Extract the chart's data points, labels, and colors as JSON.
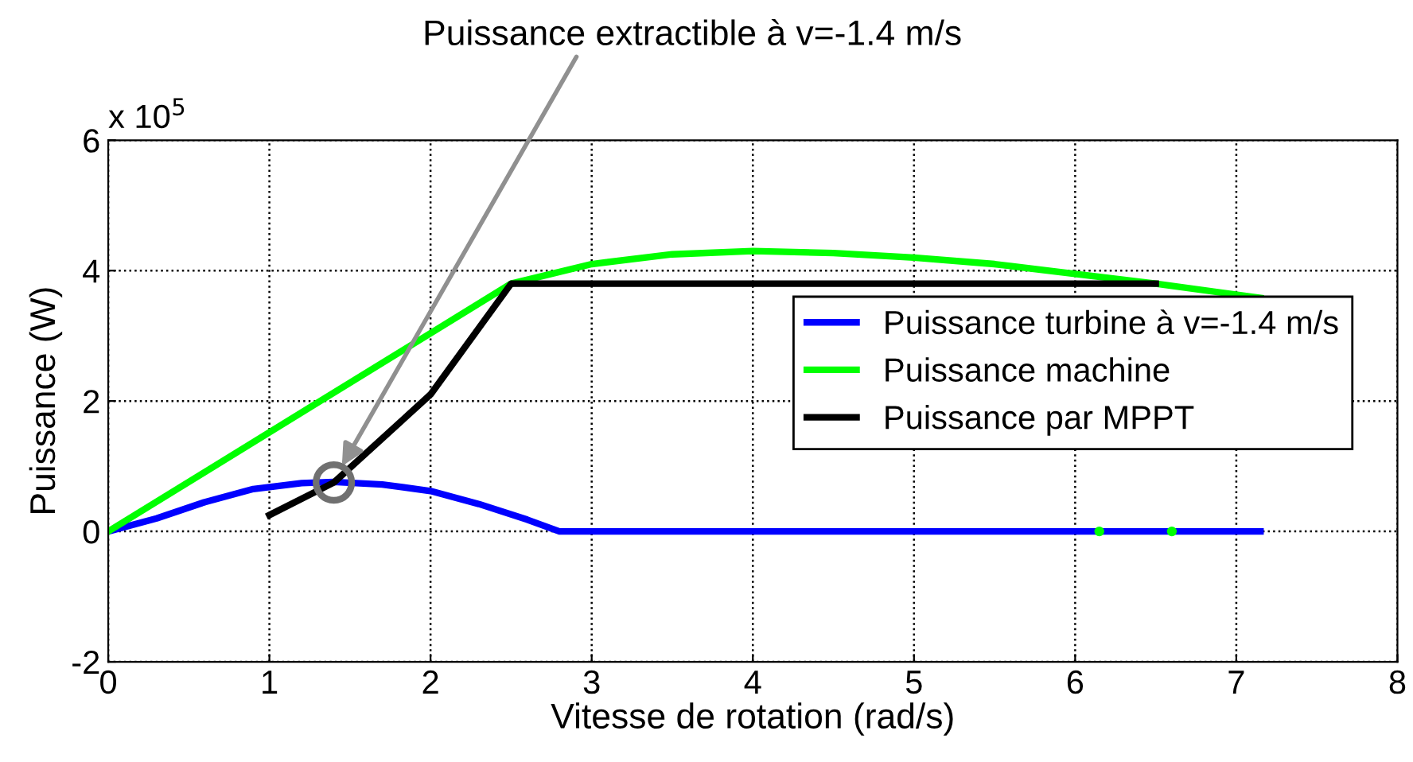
{
  "chart_data": {
    "type": "line",
    "xlabel": "Vitesse de rotation (rad/s)",
    "ylabel": "Puissance (W)",
    "annotations": [
      {
        "text": "Puissance extractible à v=-1.4 m/s",
        "x": 1.45,
        "y": 1
      },
      "x 10$^{5}$"
    ],
    "xlim": [
      0,
      8
    ],
    "ylim": [
      -2,
      6
    ],
    "xticks": [
      0,
      1,
      2,
      3,
      4,
      5,
      6,
      7,
      8
    ],
    "yticks": [
      -2,
      0,
      2,
      4,
      6
    ],
    "grid": true,
    "legend": "right",
    "line_style": "solid",
    "series": [
      {
        "name": "Puissance turbine à v=-1.4 m/s",
        "color": "#0000ff",
        "x": [
          0,
          0.3,
          0.6,
          0.9,
          1.2,
          1.4,
          1.7,
          2.0,
          2.3,
          2.6,
          2.8,
          7.15
        ],
        "values": [
          0,
          0.2,
          0.45,
          0.65,
          0.74,
          0.76,
          0.72,
          0.62,
          0.42,
          0.18,
          0,
          0
        ]
      },
      {
        "name": "Puissance machine",
        "color": "#00ff00",
        "x": [
          0,
          2.5,
          3,
          3.5,
          4,
          4.5,
          5,
          5.5,
          6,
          6.5,
          7.15
        ],
        "values": [
          0,
          3.8,
          4.1,
          4.25,
          4.3,
          4.27,
          4.2,
          4.1,
          3.95,
          3.8,
          3.58
        ]
      },
      {
        "name": "Puissance par MPPT",
        "color": "#000000",
        "x": [
          1,
          1.4,
          2,
          2.5,
          6.5
        ],
        "values": [
          0.25,
          0.75,
          2.1,
          3.8,
          3.8
        ]
      },
      {
        "type": "scatter",
        "color": "#00ff00",
        "x": [
          6.15,
          6.6
        ],
        "values": [
          0,
          0
        ]
      },
      {
        "type": "scatter",
        "color": "#707070",
        "marker": "circle",
        "x": [
          1.4
        ],
        "values": [
          0.75
        ]
      }
    ]
  }
}
